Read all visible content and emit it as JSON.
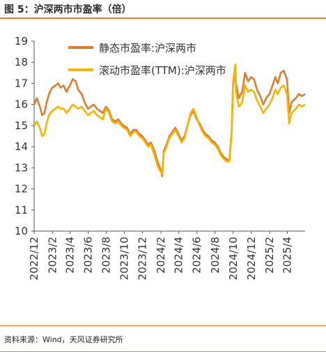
{
  "figure": {
    "title": "图 5：沪深两市市盈率（倍）",
    "source": "资料来源：Wind，天风证券研究所"
  },
  "colors": {
    "accent_rule": "#e8822a",
    "series_static": "#e07b30",
    "series_ttm": "#f7b500",
    "axis": "#555555"
  },
  "chart_data": {
    "type": "line",
    "ylim": [
      10,
      19
    ],
    "yticks": [
      10,
      11,
      12,
      13,
      14,
      15,
      16,
      17,
      18,
      19
    ],
    "x_tick_labels": [
      "2022/12",
      "2023/2",
      "2023/4",
      "2023/6",
      "2023/8",
      "2023/10",
      "2023/12",
      "2024/2",
      "2024/4",
      "2024/6",
      "2024/8",
      "2024/10",
      "2024/12",
      "2025/2",
      "2025/4"
    ],
    "x_range": [
      "2022-12-01",
      "2025-05-31"
    ],
    "grid": false,
    "legend_position": "top",
    "series": [
      {
        "name": "静态市盈率:沪深两市",
        "color": "#e07b30",
        "points": [
          [
            "2022-12-01",
            16.0
          ],
          [
            "2022-12-10",
            16.3
          ],
          [
            "2022-12-20",
            15.9
          ],
          [
            "2022-12-28",
            15.5
          ],
          [
            "2023-01-05",
            15.6
          ],
          [
            "2023-01-12",
            16.1
          ],
          [
            "2023-01-20",
            16.5
          ],
          [
            "2023-01-31",
            16.8
          ],
          [
            "2023-02-10",
            16.9
          ],
          [
            "2023-02-20",
            17.0
          ],
          [
            "2023-02-28",
            16.8
          ],
          [
            "2023-03-10",
            16.9
          ],
          [
            "2023-03-20",
            16.6
          ],
          [
            "2023-03-31",
            16.9
          ],
          [
            "2023-04-10",
            17.2
          ],
          [
            "2023-04-20",
            17.1
          ],
          [
            "2023-04-28",
            16.7
          ],
          [
            "2023-05-10",
            16.5
          ],
          [
            "2023-05-20",
            16.1
          ],
          [
            "2023-05-31",
            15.8
          ],
          [
            "2023-06-10",
            15.9
          ],
          [
            "2023-06-20",
            16.0
          ],
          [
            "2023-06-30",
            15.8
          ],
          [
            "2023-07-10",
            15.7
          ],
          [
            "2023-07-20",
            15.6
          ],
          [
            "2023-07-31",
            15.9
          ],
          [
            "2023-08-10",
            15.7
          ],
          [
            "2023-08-20",
            15.3
          ],
          [
            "2023-08-31",
            15.2
          ],
          [
            "2023-09-10",
            15.3
          ],
          [
            "2023-09-20",
            15.1
          ],
          [
            "2023-09-28",
            15.0
          ],
          [
            "2023-10-10",
            14.9
          ],
          [
            "2023-10-20",
            14.6
          ],
          [
            "2023-10-31",
            14.8
          ],
          [
            "2023-11-10",
            14.8
          ],
          [
            "2023-11-20",
            14.6
          ],
          [
            "2023-11-30",
            14.5
          ],
          [
            "2023-12-10",
            14.3
          ],
          [
            "2023-12-20",
            14.1
          ],
          [
            "2023-12-29",
            14.2
          ],
          [
            "2024-01-10",
            13.8
          ],
          [
            "2024-01-20",
            13.3
          ],
          [
            "2024-01-31",
            12.9
          ],
          [
            "2024-02-05",
            12.6
          ],
          [
            "2024-02-10",
            13.8
          ],
          [
            "2024-02-20",
            14.1
          ],
          [
            "2024-02-29",
            14.5
          ],
          [
            "2024-03-10",
            14.7
          ],
          [
            "2024-03-20",
            14.9
          ],
          [
            "2024-03-31",
            14.6
          ],
          [
            "2024-04-10",
            14.3
          ],
          [
            "2024-04-20",
            14.5
          ],
          [
            "2024-04-30",
            15.0
          ],
          [
            "2024-05-10",
            15.5
          ],
          [
            "2024-05-20",
            15.7
          ],
          [
            "2024-05-31",
            15.3
          ],
          [
            "2024-06-10",
            15.1
          ],
          [
            "2024-06-20",
            14.8
          ],
          [
            "2024-06-30",
            14.6
          ],
          [
            "2024-07-10",
            14.5
          ],
          [
            "2024-07-20",
            14.3
          ],
          [
            "2024-07-31",
            14.2
          ],
          [
            "2024-08-10",
            14.0
          ],
          [
            "2024-08-20",
            13.7
          ],
          [
            "2024-08-31",
            13.5
          ],
          [
            "2024-09-10",
            13.4
          ],
          [
            "2024-09-18",
            13.3
          ],
          [
            "2024-09-26",
            14.7
          ],
          [
            "2024-09-30",
            16.8
          ],
          [
            "2024-10-08",
            17.8
          ],
          [
            "2024-10-10",
            17.0
          ],
          [
            "2024-10-20",
            16.3
          ],
          [
            "2024-10-31",
            16.6
          ],
          [
            "2024-11-10",
            17.5
          ],
          [
            "2024-11-20",
            17.1
          ],
          [
            "2024-11-30",
            17.3
          ],
          [
            "2024-12-10",
            17.2
          ],
          [
            "2024-12-20",
            16.7
          ],
          [
            "2024-12-31",
            16.4
          ],
          [
            "2025-01-10",
            16.0
          ],
          [
            "2025-01-20",
            16.3
          ],
          [
            "2025-01-31",
            16.5
          ],
          [
            "2025-02-10",
            16.9
          ],
          [
            "2025-02-20",
            17.3
          ],
          [
            "2025-02-28",
            17.0
          ],
          [
            "2025-03-10",
            17.5
          ],
          [
            "2025-03-20",
            17.6
          ],
          [
            "2025-03-31",
            17.2
          ],
          [
            "2025-04-07",
            15.6
          ],
          [
            "2025-04-15",
            16.1
          ],
          [
            "2025-04-30",
            16.3
          ],
          [
            "2025-05-10",
            16.5
          ],
          [
            "2025-05-20",
            16.4
          ],
          [
            "2025-05-31",
            16.5
          ]
        ]
      },
      {
        "name": "滚动市盈率(TTM):沪深两市",
        "color": "#f7b500",
        "points": [
          [
            "2022-12-01",
            15.0
          ],
          [
            "2022-12-10",
            15.2
          ],
          [
            "2022-12-20",
            14.9
          ],
          [
            "2022-12-28",
            14.5
          ],
          [
            "2023-01-05",
            14.6
          ],
          [
            "2023-01-12",
            15.1
          ],
          [
            "2023-01-20",
            15.5
          ],
          [
            "2023-01-31",
            15.7
          ],
          [
            "2023-02-10",
            15.8
          ],
          [
            "2023-02-20",
            15.9
          ],
          [
            "2023-02-28",
            15.8
          ],
          [
            "2023-03-10",
            15.8
          ],
          [
            "2023-03-20",
            15.6
          ],
          [
            "2023-03-31",
            15.8
          ],
          [
            "2023-04-10",
            16.0
          ],
          [
            "2023-04-20",
            15.9
          ],
          [
            "2023-04-28",
            15.8
          ],
          [
            "2023-05-10",
            15.9
          ],
          [
            "2023-05-20",
            15.7
          ],
          [
            "2023-05-31",
            15.5
          ],
          [
            "2023-06-10",
            15.6
          ],
          [
            "2023-06-20",
            15.7
          ],
          [
            "2023-06-30",
            15.5
          ],
          [
            "2023-07-10",
            15.4
          ],
          [
            "2023-07-20",
            15.3
          ],
          [
            "2023-07-31",
            15.8
          ],
          [
            "2023-08-10",
            15.6
          ],
          [
            "2023-08-20",
            15.2
          ],
          [
            "2023-08-31",
            15.1
          ],
          [
            "2023-09-10",
            15.2
          ],
          [
            "2023-09-20",
            15.0
          ],
          [
            "2023-09-28",
            14.9
          ],
          [
            "2023-10-10",
            14.8
          ],
          [
            "2023-10-20",
            14.5
          ],
          [
            "2023-10-31",
            14.7
          ],
          [
            "2023-11-10",
            14.7
          ],
          [
            "2023-11-20",
            14.5
          ],
          [
            "2023-11-30",
            14.4
          ],
          [
            "2023-12-10",
            14.2
          ],
          [
            "2023-12-20",
            14.0
          ],
          [
            "2023-12-29",
            14.1
          ],
          [
            "2024-01-10",
            13.6
          ],
          [
            "2024-01-20",
            13.1
          ],
          [
            "2024-01-31",
            12.8
          ],
          [
            "2024-02-05",
            12.7
          ],
          [
            "2024-02-10",
            13.7
          ],
          [
            "2024-02-20",
            14.0
          ],
          [
            "2024-02-29",
            14.4
          ],
          [
            "2024-03-10",
            14.6
          ],
          [
            "2024-03-20",
            14.8
          ],
          [
            "2024-03-31",
            14.5
          ],
          [
            "2024-04-10",
            14.2
          ],
          [
            "2024-04-20",
            14.4
          ],
          [
            "2024-04-30",
            15.0
          ],
          [
            "2024-05-10",
            15.6
          ],
          [
            "2024-05-20",
            15.8
          ],
          [
            "2024-05-31",
            15.4
          ],
          [
            "2024-06-10",
            15.0
          ],
          [
            "2024-06-20",
            14.7
          ],
          [
            "2024-06-30",
            14.5
          ],
          [
            "2024-07-10",
            14.4
          ],
          [
            "2024-07-20",
            14.2
          ],
          [
            "2024-07-31",
            14.1
          ],
          [
            "2024-08-10",
            13.9
          ],
          [
            "2024-08-20",
            13.6
          ],
          [
            "2024-08-31",
            13.4
          ],
          [
            "2024-09-10",
            13.3
          ],
          [
            "2024-09-18",
            13.3
          ],
          [
            "2024-09-26",
            14.8
          ],
          [
            "2024-09-30",
            17.0
          ],
          [
            "2024-10-08",
            17.9
          ],
          [
            "2024-10-10",
            16.6
          ],
          [
            "2024-10-20",
            15.9
          ],
          [
            "2024-10-31",
            16.1
          ],
          [
            "2024-11-10",
            16.9
          ],
          [
            "2024-11-20",
            16.6
          ],
          [
            "2024-11-30",
            16.7
          ],
          [
            "2024-12-10",
            16.6
          ],
          [
            "2024-12-20",
            16.2
          ],
          [
            "2024-12-31",
            15.9
          ],
          [
            "2025-01-10",
            15.6
          ],
          [
            "2025-01-20",
            15.8
          ],
          [
            "2025-01-31",
            16.0
          ],
          [
            "2025-02-10",
            16.3
          ],
          [
            "2025-02-20",
            16.7
          ],
          [
            "2025-02-28",
            16.5
          ],
          [
            "2025-03-10",
            16.8
          ],
          [
            "2025-03-20",
            16.9
          ],
          [
            "2025-03-31",
            16.5
          ],
          [
            "2025-04-07",
            15.1
          ],
          [
            "2025-04-15",
            15.6
          ],
          [
            "2025-04-30",
            15.8
          ],
          [
            "2025-05-10",
            16.0
          ],
          [
            "2025-05-20",
            15.9
          ],
          [
            "2025-05-31",
            16.0
          ]
        ]
      }
    ]
  }
}
